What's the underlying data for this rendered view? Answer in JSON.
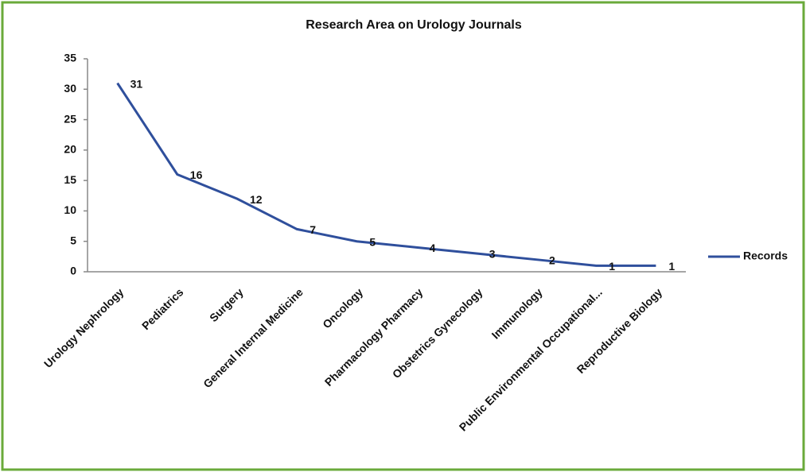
{
  "chart_data": {
    "type": "line",
    "title": "Research Area  on Urology Journals",
    "categories": [
      "Urology Nephrology",
      "Pediatrics",
      "Surgery",
      "General Internal Medicine",
      "Oncology",
      "Pharmacology Pharmacy",
      "Obstetrics Gynecology",
      "Immunology",
      "Public Environmental Occupational...",
      "Reproductive Biology"
    ],
    "series": [
      {
        "name": "Records",
        "color": "#2f4f9c",
        "values": [
          31,
          16,
          12,
          7,
          5,
          4,
          3,
          2,
          1,
          1
        ]
      }
    ],
    "ylim": [
      0,
      35
    ],
    "yticks": [
      0,
      5,
      10,
      15,
      20,
      25,
      30,
      35
    ],
    "grid": false,
    "legend": "right"
  }
}
